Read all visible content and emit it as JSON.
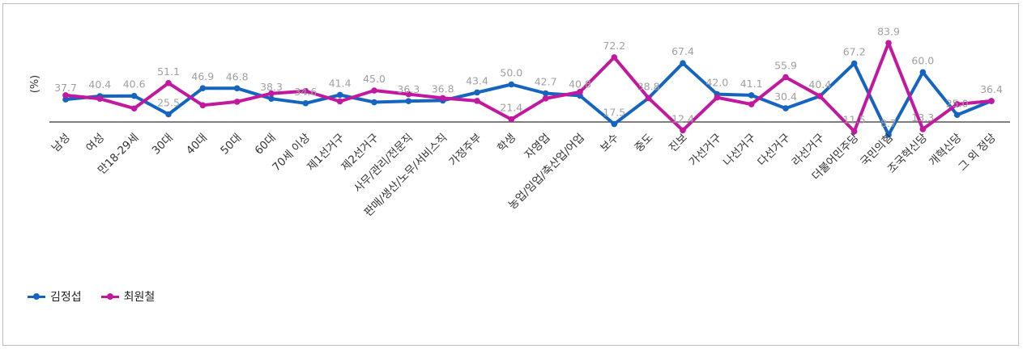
{
  "chart_data": {
    "type": "line",
    "ylabel": "(%)",
    "categories": [
      "남성",
      "여성",
      "만18-29세",
      "30대",
      "40대",
      "50대",
      "60대",
      "70세 이상",
      "제1선거구",
      "제2선거구",
      "사무/관리/전문직",
      "판매/생산/노무/서비스직",
      "가정주부",
      "학생",
      "자영업",
      "농업/임업/축산업/어업",
      "보수",
      "중도",
      "진보",
      "가선거구",
      "나선거구",
      "다선거구",
      "라선거구",
      "더불어민주당",
      "국민의힘",
      "조국혁신당",
      "개혁신당",
      "그 외 정당"
    ],
    "series": [
      {
        "name": "김정섭",
        "color": "#1565c0",
        "values": [
          37.7,
          40.4,
          40.6,
          25.5,
          46.9,
          46.8,
          38.3,
          34.6,
          41.4,
          35.4,
          36.3,
          36.8,
          43.4,
          50.0,
          42.7,
          40.8,
          17.5,
          38.8,
          67.4,
          42.0,
          41.1,
          30.4,
          40.4,
          67.2,
          8.7,
          60.0,
          25.0,
          36.4
        ]
      },
      {
        "name": "최원철",
        "color": "#c2189f",
        "values": [
          41.1,
          38.3,
          30.3,
          51.1,
          32.9,
          35.8,
          42.6,
          44.6,
          36.1,
          45.0,
          42.0,
          38.8,
          36.5,
          21.4,
          38.5,
          43.8,
          72.2,
          38.8,
          12.4,
          39.3,
          33.7,
          55.9,
          40.4,
          11.5,
          83.9,
          13.3,
          33.8,
          36.4
        ]
      }
    ],
    "label_series": [
      0,
      0,
      0,
      1,
      0,
      0,
      0,
      0,
      0,
      1,
      0,
      0,
      0,
      0,
      0,
      0,
      1,
      0,
      0,
      0,
      0,
      1,
      0,
      0,
      1,
      0,
      0,
      0
    ],
    "label_series2": [
      null,
      null,
      null,
      0,
      null,
      null,
      null,
      null,
      null,
      null,
      null,
      null,
      null,
      1,
      null,
      null,
      0,
      null,
      1,
      null,
      null,
      0,
      null,
      1,
      0,
      1,
      null,
      null
    ],
    "ylim": [
      0,
      100
    ],
    "grid": false,
    "legend_position": "bottom-left"
  },
  "colors": {
    "axis": "#555555",
    "data_label": "#a0a0a0",
    "tick_label": "#333333"
  }
}
